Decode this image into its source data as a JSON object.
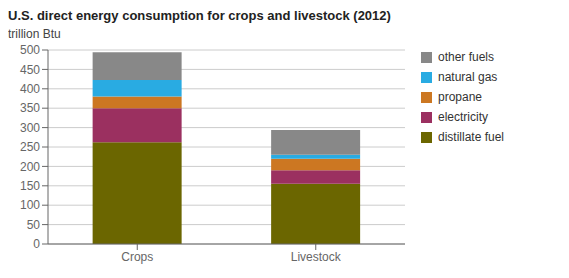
{
  "chart_data": {
    "type": "bar",
    "stacked": true,
    "title": "U.S. direct energy consumption for crops and livestock (2012)",
    "ylabel": "trillion Btu",
    "categories": [
      "Crops",
      "Livestock"
    ],
    "series": [
      {
        "name": "distillate fuel",
        "color": "#6b6600",
        "values": [
          262,
          155
        ]
      },
      {
        "name": "electricity",
        "color": "#9b3060",
        "values": [
          88,
          35
        ]
      },
      {
        "name": "propane",
        "color": "#cc7722",
        "values": [
          30,
          30
        ]
      },
      {
        "name": "natural gas",
        "color": "#29abe2",
        "values": [
          43,
          10
        ]
      },
      {
        "name": "other fuels",
        "color": "#888888",
        "values": [
          71,
          64
        ]
      }
    ],
    "ylim": [
      0,
      500
    ],
    "yticks": [
      0,
      50,
      100,
      150,
      200,
      250,
      300,
      350,
      400,
      450,
      500
    ],
    "grid": true,
    "legend": "right"
  }
}
